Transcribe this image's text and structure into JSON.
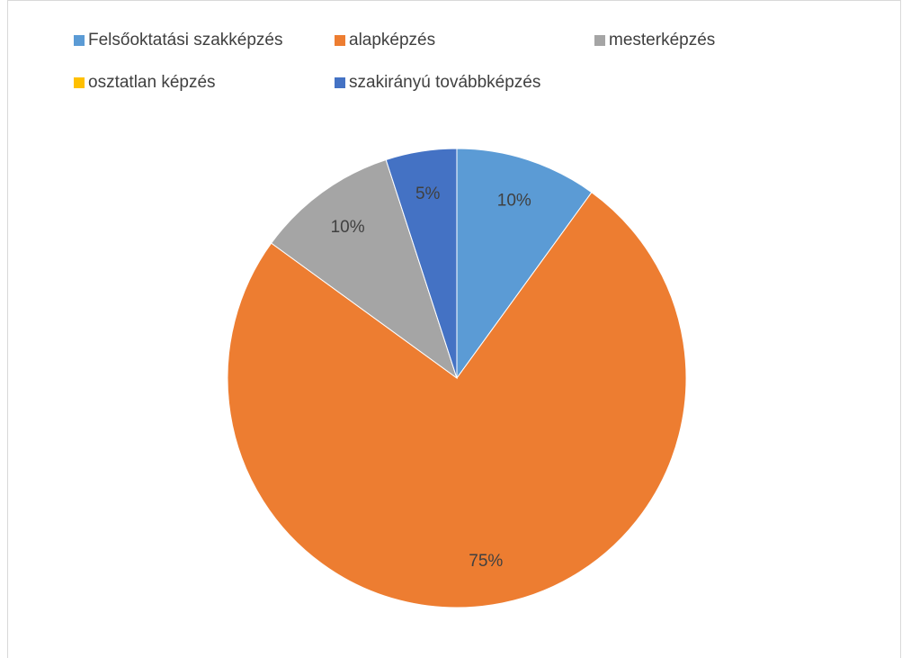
{
  "chart_data": {
    "type": "pie",
    "categories": [
      "Felsőoktatási szakképzés",
      "alapképzés",
      "mesterképzés",
      "osztatlan képzés",
      "szakirányú továbbképzés"
    ],
    "values": [
      10,
      75,
      10,
      0,
      5
    ],
    "value_labels": [
      "10%",
      "75%",
      "10%",
      null,
      "5%"
    ],
    "colors": [
      "#5b9bd5",
      "#ed7d31",
      "#a5a5a5",
      "#ffc000",
      "#4472c4"
    ],
    "legend": "top"
  }
}
